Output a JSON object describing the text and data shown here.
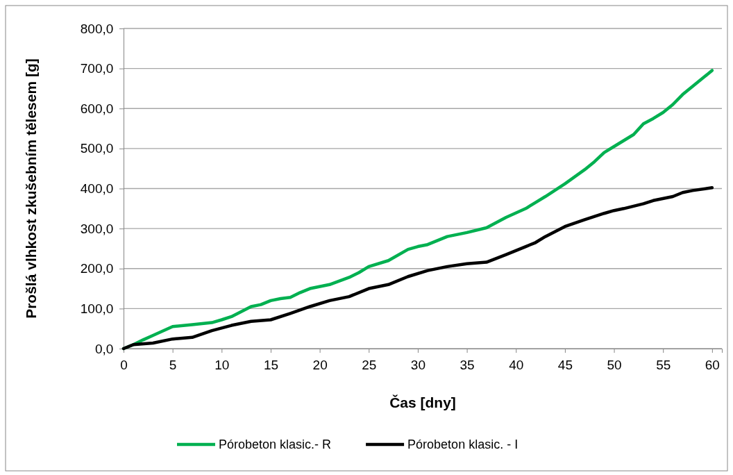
{
  "chart_data": {
    "type": "line",
    "xlabel": "Čas [dny]",
    "ylabel": "Prošlá vlhkost zkušebním tělesem [g]",
    "xlim": [
      0,
      61
    ],
    "xticks": [
      0,
      5,
      10,
      15,
      20,
      25,
      30,
      35,
      40,
      45,
      50,
      55,
      60
    ],
    "ylim": [
      0,
      800
    ],
    "yticks": [
      {
        "value": 0,
        "label": "0,0"
      },
      {
        "value": 100,
        "label": "100,0"
      },
      {
        "value": 200,
        "label": "200,0"
      },
      {
        "value": 300,
        "label": "300,0"
      },
      {
        "value": 400,
        "label": "400,0"
      },
      {
        "value": 500,
        "label": "500,0"
      },
      {
        "value": 600,
        "label": "600,0"
      },
      {
        "value": 700,
        "label": "700,0"
      },
      {
        "value": 800,
        "label": "800,0"
      }
    ],
    "grid": "y",
    "legend": "bottom",
    "marker": "none",
    "line_style": "solid",
    "series": [
      {
        "name": "Pórobeton klasic.- R",
        "color": "#00b050",
        "x": [
          0,
          1,
          2,
          3,
          5,
          7,
          9,
          10,
          11,
          13,
          14,
          15,
          16,
          17,
          18,
          19,
          21,
          23,
          24,
          25,
          27,
          29,
          30,
          31,
          33,
          35,
          37,
          39,
          41,
          42,
          43,
          45,
          47,
          48,
          49,
          50,
          52,
          53,
          54,
          55,
          56,
          57,
          58,
          60
        ],
        "values": [
          0,
          10,
          22,
          33,
          55,
          60,
          65,
          72,
          80,
          105,
          110,
          120,
          125,
          128,
          140,
          150,
          160,
          178,
          190,
          205,
          220,
          248,
          255,
          260,
          280,
          290,
          302,
          328,
          350,
          365,
          380,
          412,
          447,
          467,
          490,
          505,
          535,
          562,
          575,
          590,
          610,
          635,
          655,
          695
        ]
      },
      {
        "name": "Pórobeton klasic. - I",
        "color": "#000000",
        "x": [
          0,
          1,
          3,
          5,
          7,
          9,
          11,
          13,
          15,
          17,
          19,
          21,
          23,
          25,
          27,
          29,
          31,
          33,
          35,
          37,
          39,
          41,
          42,
          43,
          45,
          47,
          49,
          50,
          51,
          53,
          54,
          56,
          57,
          58,
          60
        ],
        "values": [
          0,
          10,
          14,
          24,
          28,
          45,
          58,
          68,
          72,
          88,
          105,
          120,
          130,
          150,
          160,
          180,
          195,
          205,
          212,
          216,
          235,
          255,
          265,
          280,
          305,
          322,
          338,
          345,
          350,
          362,
          370,
          380,
          390,
          395,
          402
        ]
      }
    ]
  }
}
